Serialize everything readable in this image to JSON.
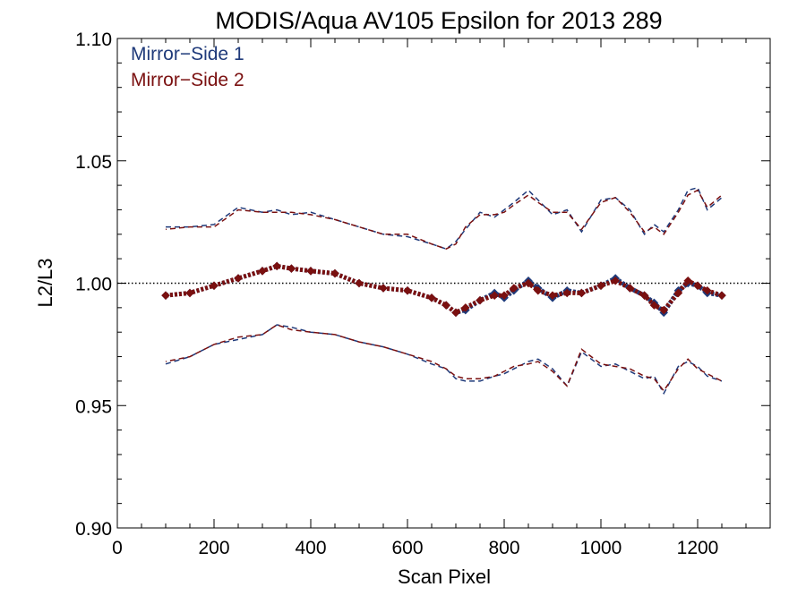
{
  "chart_data": {
    "type": "scatter",
    "title": "MODIS/Aqua AV105 Epsilon for 2013 289",
    "xlabel": "Scan Pixel",
    "ylabel": "L2/L3",
    "xlim": [
      0,
      1350
    ],
    "ylim": [
      0.9,
      1.1
    ],
    "x_ticks": [
      0,
      200,
      400,
      600,
      800,
      1000,
      1200
    ],
    "x_tick_labels": [
      "0",
      "200",
      "400",
      "600",
      "800",
      "1000",
      "1200"
    ],
    "y_ticks": [
      0.9,
      0.95,
      1.0,
      1.05,
      1.1
    ],
    "y_tick_labels": [
      "0.90",
      "0.95",
      "1.00",
      "1.05",
      "1.10"
    ],
    "reference_line": 1.0,
    "legend_position": "top-left",
    "colors": {
      "mirror_side_1": "#1f3a7a",
      "mirror_side_2": "#7a1010"
    },
    "legend": [
      "Mirror−Side 1",
      "Mirror−Side 2"
    ],
    "series": [
      {
        "name": "Mirror−Side 1",
        "x": [
          100,
          150,
          200,
          250,
          300,
          330,
          360,
          400,
          450,
          500,
          550,
          600,
          650,
          680,
          700,
          720,
          750,
          780,
          800,
          820,
          850,
          870,
          900,
          930,
          960,
          1000,
          1030,
          1060,
          1090,
          1110,
          1130,
          1160,
          1180,
          1200,
          1220,
          1250
        ],
        "mean": [
          0.995,
          0.996,
          0.999,
          1.002,
          1.005,
          1.007,
          1.006,
          1.005,
          1.004,
          1.0,
          0.998,
          0.997,
          0.994,
          0.991,
          0.988,
          0.989,
          0.993,
          0.996,
          0.994,
          0.997,
          1.001,
          0.998,
          0.994,
          0.997,
          0.996,
          0.999,
          1.002,
          0.998,
          0.995,
          0.992,
          0.988,
          0.997,
          1.0,
          0.999,
          0.996,
          0.995
        ],
        "upper": [
          1.023,
          1.023,
          1.024,
          1.031,
          1.029,
          1.03,
          1.028,
          1.029,
          1.026,
          1.023,
          1.02,
          1.019,
          1.016,
          1.014,
          1.017,
          1.022,
          1.029,
          1.027,
          1.03,
          1.033,
          1.038,
          1.034,
          1.028,
          1.03,
          1.021,
          1.034,
          1.035,
          1.03,
          1.02,
          1.024,
          1.021,
          1.03,
          1.038,
          1.039,
          1.03,
          1.035
        ],
        "lower": [
          0.967,
          0.97,
          0.975,
          0.977,
          0.979,
          0.983,
          0.982,
          0.98,
          0.979,
          0.976,
          0.974,
          0.971,
          0.967,
          0.965,
          0.961,
          0.96,
          0.96,
          0.962,
          0.963,
          0.965,
          0.968,
          0.969,
          0.965,
          0.958,
          0.972,
          0.966,
          0.967,
          0.964,
          0.961,
          0.962,
          0.955,
          0.966,
          0.968,
          0.966,
          0.962,
          0.96
        ]
      },
      {
        "name": "Mirror−Side 2",
        "x": [
          100,
          150,
          200,
          250,
          300,
          330,
          360,
          400,
          450,
          500,
          550,
          600,
          650,
          680,
          700,
          720,
          750,
          780,
          800,
          820,
          850,
          870,
          900,
          930,
          960,
          1000,
          1030,
          1060,
          1090,
          1110,
          1130,
          1160,
          1180,
          1200,
          1220,
          1250
        ],
        "mean": [
          0.995,
          0.996,
          0.999,
          1.002,
          1.005,
          1.007,
          1.006,
          1.005,
          1.004,
          1.0,
          0.998,
          0.997,
          0.994,
          0.991,
          0.988,
          0.99,
          0.993,
          0.995,
          0.995,
          0.998,
          1.0,
          0.997,
          0.995,
          0.996,
          0.996,
          0.999,
          1.001,
          0.998,
          0.995,
          0.991,
          0.989,
          0.996,
          1.001,
          0.999,
          0.997,
          0.995
        ],
        "upper": [
          1.022,
          1.023,
          1.023,
          1.03,
          1.029,
          1.029,
          1.029,
          1.028,
          1.026,
          1.023,
          1.02,
          1.02,
          1.016,
          1.014,
          1.016,
          1.023,
          1.028,
          1.028,
          1.029,
          1.032,
          1.036,
          1.033,
          1.029,
          1.029,
          1.022,
          1.033,
          1.035,
          1.029,
          1.021,
          1.023,
          1.02,
          1.029,
          1.036,
          1.038,
          1.031,
          1.036
        ],
        "lower": [
          0.968,
          0.97,
          0.975,
          0.978,
          0.979,
          0.983,
          0.981,
          0.98,
          0.979,
          0.976,
          0.974,
          0.971,
          0.968,
          0.965,
          0.962,
          0.961,
          0.961,
          0.962,
          0.964,
          0.966,
          0.967,
          0.968,
          0.964,
          0.958,
          0.973,
          0.967,
          0.966,
          0.965,
          0.962,
          0.961,
          0.956,
          0.965,
          0.969,
          0.965,
          0.963,
          0.96
        ]
      }
    ]
  }
}
